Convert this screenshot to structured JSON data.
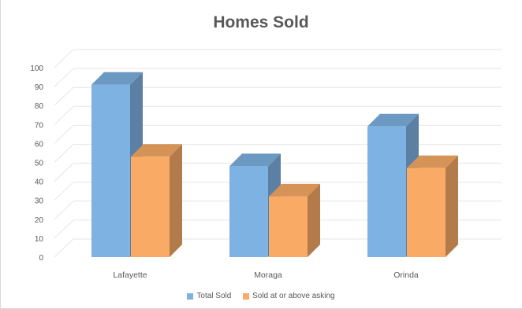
{
  "chart_data": {
    "type": "bar",
    "title": "Homes Sold",
    "categories": [
      "Lafayette",
      "Moraga",
      "Orinda"
    ],
    "series": [
      {
        "name": "Total Sold",
        "values": [
          91,
          48,
          69
        ],
        "color": "#7eb2e2"
      },
      {
        "name": "Sold at or above asking",
        "values": [
          53,
          32,
          47
        ],
        "color": "#f9ab66"
      }
    ],
    "yticks": [
      "0",
      "10",
      "20",
      "30",
      "40",
      "50",
      "60",
      "70",
      "80",
      "90",
      "100"
    ],
    "ylim": [
      0,
      100
    ],
    "grid": true,
    "legend_position": "bottom",
    "xlabel": "",
    "ylabel": ""
  }
}
